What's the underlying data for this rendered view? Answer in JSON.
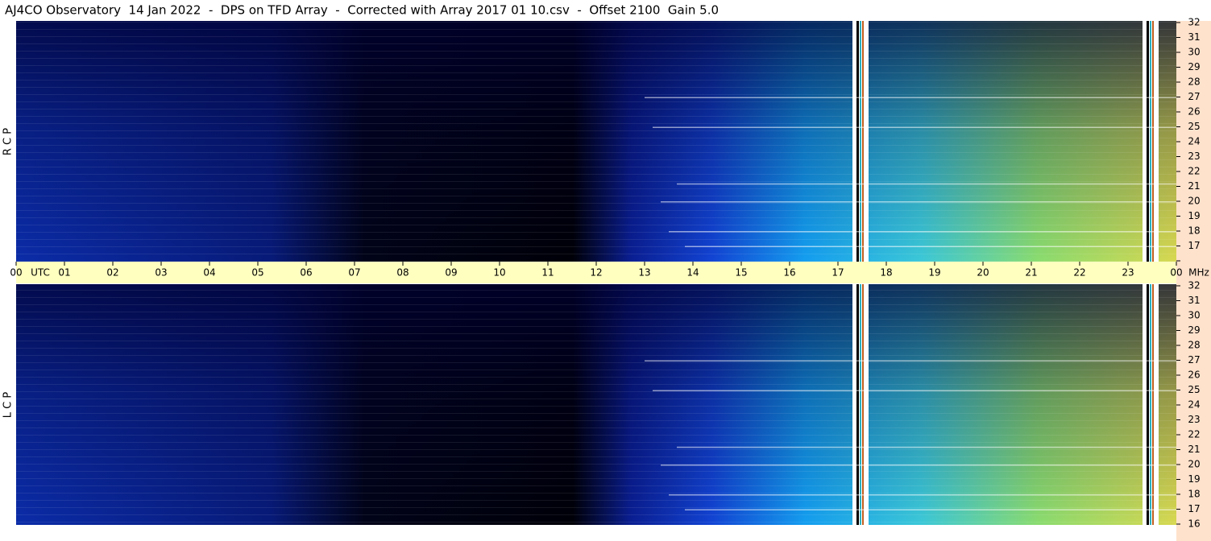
{
  "chart_data": {
    "type": "spectrogram",
    "title": "AJ4CO Observatory  14 Jan 2022  -  DPS on TFD Array  -  Corrected with Array 2017 01 10.csv  -  Offset 2100  Gain 5.0",
    "panels": [
      {
        "label": "R C P"
      },
      {
        "label": "L C P"
      }
    ],
    "x_label": "UTC",
    "y_label": "MHz",
    "xlim": [
      0,
      24
    ],
    "xticks": [
      {
        "value": 0,
        "label": "00"
      },
      {
        "value": 1,
        "label": "01"
      },
      {
        "value": 2,
        "label": "02"
      },
      {
        "value": 3,
        "label": "03"
      },
      {
        "value": 4,
        "label": "04"
      },
      {
        "value": 5,
        "label": "05"
      },
      {
        "value": 6,
        "label": "06"
      },
      {
        "value": 7,
        "label": "07"
      },
      {
        "value": 8,
        "label": "08"
      },
      {
        "value": 9,
        "label": "09"
      },
      {
        "value": 10,
        "label": "10"
      },
      {
        "value": 11,
        "label": "11"
      },
      {
        "value": 12,
        "label": "12"
      },
      {
        "value": 13,
        "label": "13"
      },
      {
        "value": 14,
        "label": "14"
      },
      {
        "value": 15,
        "label": "15"
      },
      {
        "value": 16,
        "label": "16"
      },
      {
        "value": 17,
        "label": "17"
      },
      {
        "value": 18,
        "label": "18"
      },
      {
        "value": 19,
        "label": "19"
      },
      {
        "value": 20,
        "label": "20"
      },
      {
        "value": 21,
        "label": "21"
      },
      {
        "value": 22,
        "label": "22"
      },
      {
        "value": 23,
        "label": "23"
      },
      {
        "value": 24,
        "label": "00"
      }
    ],
    "ylim": [
      16,
      32
    ],
    "yticks": [
      16,
      17,
      18,
      19,
      20,
      21,
      22,
      23,
      24,
      25,
      26,
      27,
      28,
      29,
      30,
      31,
      32
    ]
  }
}
